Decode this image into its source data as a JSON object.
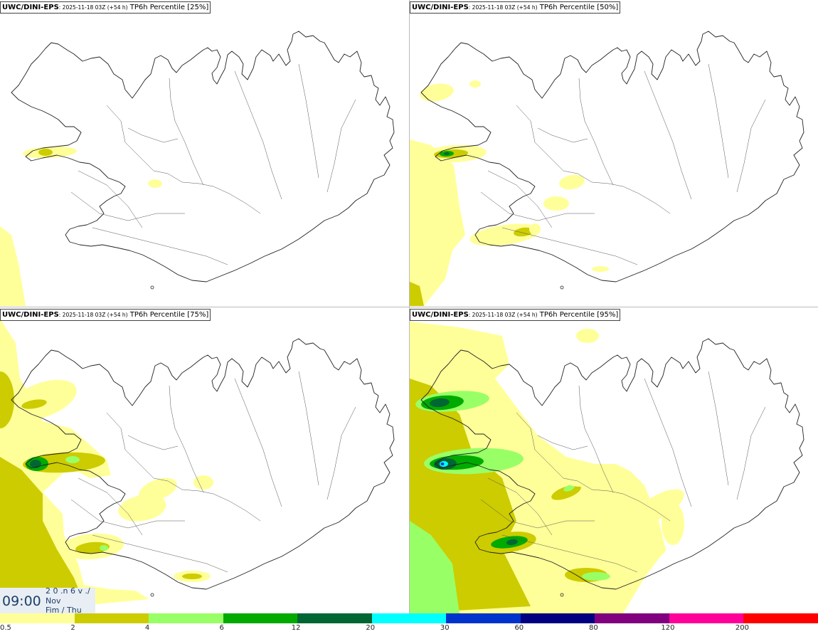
{
  "panels": [
    {
      "model": "UWC/DINI-EPS",
      "run": ": 2025-11-18 03Z (+54 h)",
      "field": " TP6h Percentile [25%]",
      "level": 25
    },
    {
      "model": "UWC/DINI-EPS",
      "run": ": 2025-11-18 03Z (+54 h)",
      "field": " TP6h Percentile [50%]",
      "level": 50
    },
    {
      "model": "UWC/DINI-EPS",
      "run": ": 2025-11-18 03Z (+54 h)",
      "field": " TP6h Percentile [75%]",
      "level": 75
    },
    {
      "model": "UWC/DINI-EPS",
      "run": ": 2025-11-18 03Z (+54 h)",
      "field": " TP6h Percentile [95%]",
      "level": 95
    }
  ],
  "clock": {
    "time": "09:00",
    "line1": "2 0 .n 6 v ./",
    "line2": "Nov",
    "line3": "Fim / Thu"
  },
  "legend": {
    "labels": [
      "0.5",
      "2",
      "4",
      "6",
      "12",
      "20",
      "30",
      "60",
      "80",
      "120",
      "200"
    ],
    "colors": [
      "#ffff99",
      "#cccc00",
      "#99ff66",
      "#00aa00",
      "#006633",
      "#00ffff",
      "#0033cc",
      "#000080",
      "#800080",
      "#ff0099",
      "#ff0000"
    ]
  },
  "map_region": "Iceland"
}
